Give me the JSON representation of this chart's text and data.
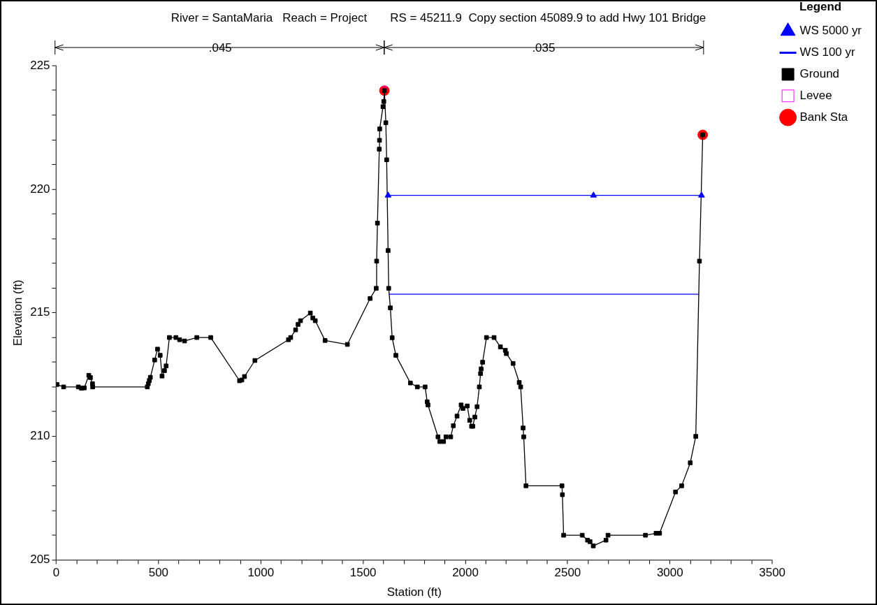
{
  "chart_data": {
    "type": "line",
    "title": "River = SantaMaria   Reach = Project       RS = 45211.9  Copy section 45089.9 to add Hwy 101 Bridge",
    "xlabel": "Station (ft)",
    "ylabel": "Elevation (ft)",
    "legend_title": "Legend",
    "legend": "right",
    "grid": false,
    "xlim": [
      0,
      3500
    ],
    "xticks": [
      0,
      {
        "value": 100,
        "label": null
      },
      {
        "value": 200,
        "label": null
      },
      {
        "value": 300,
        "label": null
      },
      {
        "value": 400,
        "label": null
      },
      500,
      {
        "value": 600,
        "label": null
      },
      {
        "value": 700,
        "label": null
      },
      {
        "value": 800,
        "label": null
      },
      {
        "value": 900,
        "label": null
      },
      1000,
      {
        "value": 1100,
        "label": null
      },
      {
        "value": 1200,
        "label": null
      },
      {
        "value": 1300,
        "label": null
      },
      {
        "value": 1400,
        "label": null
      },
      1500,
      {
        "value": 1600,
        "label": null
      },
      {
        "value": 1700,
        "label": null
      },
      {
        "value": 1800,
        "label": null
      },
      {
        "value": 1900,
        "label": null
      },
      2000,
      {
        "value": 2100,
        "label": null
      },
      {
        "value": 2200,
        "label": null
      },
      {
        "value": 2300,
        "label": null
      },
      {
        "value": 2400,
        "label": null
      },
      2500,
      {
        "value": 2600,
        "label": null
      },
      {
        "value": 2700,
        "label": null
      },
      {
        "value": 2800,
        "label": null
      },
      {
        "value": 2900,
        "label": null
      },
      3000,
      {
        "value": 3100,
        "label": null
      },
      {
        "value": 3200,
        "label": null
      },
      {
        "value": 3300,
        "label": null
      },
      {
        "value": 3400,
        "label": null
      },
      3500
    ],
    "ylim": [
      205,
      225
    ],
    "yticks": [
      205,
      {
        "value": 206,
        "label": null
      },
      {
        "value": 207,
        "label": null
      },
      {
        "value": 208,
        "label": null
      },
      {
        "value": 209,
        "label": null
      },
      210,
      {
        "value": 211,
        "label": null
      },
      {
        "value": 212,
        "label": null
      },
      {
        "value": 213,
        "label": null
      },
      {
        "value": 214,
        "label": null
      },
      215,
      {
        "value": 216,
        "label": null
      },
      {
        "value": 217,
        "label": null
      },
      {
        "value": 218,
        "label": null
      },
      {
        "value": 219,
        "label": null
      },
      220,
      {
        "value": 221,
        "label": null
      },
      {
        "value": 222,
        "label": null
      },
      {
        "value": 223,
        "label": null
      },
      {
        "value": 224,
        "label": null
      },
      225
    ],
    "annotations": [
      ".045",
      ".035"
    ],
    "series": [
      {
        "name": "WS 5000 yr",
        "type": "line",
        "color": "#0000ff",
        "marker": "triangle",
        "x": [
          1622,
          2626,
          3154
        ],
        "values": [
          219.75,
          219.75,
          219.75
        ]
      },
      {
        "name": "WS 100 yr",
        "type": "line",
        "color": "#0000ff",
        "marker": "none",
        "x": [
          1626,
          3142
        ],
        "values": [
          215.75,
          215.75
        ]
      },
      {
        "name": "Ground",
        "type": "line",
        "color": "#000000",
        "marker": "square",
        "x": [
          4,
          36,
          108,
          123,
          137,
          159,
          167,
          177,
          178,
          445,
          450,
          455,
          460,
          481,
          495,
          508,
          517,
          529,
          537,
          553,
          585,
          603,
          627,
          687,
          755,
          896,
          907,
          920,
          971,
          1135,
          1146,
          1170,
          1182,
          1194,
          1242,
          1254,
          1266,
          1314,
          1423,
          1534,
          1564,
          1566,
          1570,
          1579,
          1580,
          1581,
          1597,
          1601,
          1604,
          1611,
          1615,
          1622,
          1625,
          1633,
          1642,
          1660,
          1731,
          1765,
          1803,
          1813,
          1817,
          1866,
          1875,
          1893,
          1905,
          1928,
          1941,
          1959,
          1979,
          1988,
          2009,
          2021,
          2030,
          2036,
          2046,
          2057,
          2068,
          2074,
          2077,
          2084,
          2103,
          2140,
          2171,
          2195,
          2200,
          2233,
          2263,
          2270,
          2282,
          2285,
          2296,
          2472,
          2474,
          2480,
          2571,
          2597,
          2609,
          2625,
          2687,
          2697,
          2880,
          2932,
          2949,
          3027,
          3057,
          3099,
          3126,
          3144,
          3160
        ],
        "values": [
          212.1,
          212.0,
          212.0,
          211.95,
          211.96,
          212.47,
          212.38,
          212.13,
          212.0,
          212.0,
          212.13,
          212.26,
          212.39,
          213.09,
          213.53,
          213.28,
          212.44,
          212.66,
          212.85,
          214.0,
          214.0,
          213.91,
          213.86,
          214.0,
          214.0,
          212.25,
          212.28,
          212.42,
          213.07,
          213.91,
          214.0,
          214.31,
          214.53,
          214.68,
          214.99,
          214.79,
          214.68,
          213.88,
          213.72,
          215.58,
          215.99,
          217.09,
          218.63,
          221.62,
          221.98,
          222.44,
          223.34,
          223.55,
          223.99,
          222.69,
          221.19,
          217.52,
          215.99,
          215.2,
          213.99,
          213.28,
          212.16,
          212.0,
          212.0,
          211.4,
          211.27,
          209.98,
          209.79,
          209.79,
          209.98,
          209.98,
          210.43,
          210.82,
          211.27,
          211.13,
          211.23,
          210.65,
          210.41,
          210.41,
          210.78,
          211.2,
          212.0,
          212.54,
          212.73,
          213.0,
          214.0,
          214.0,
          213.62,
          213.48,
          213.35,
          212.95,
          212.18,
          212.0,
          210.34,
          209.98,
          208.0,
          208.0,
          207.64,
          206.0,
          206.0,
          205.8,
          205.74,
          205.57,
          205.8,
          206.0,
          206.0,
          206.08,
          206.08,
          207.75,
          208.0,
          208.93,
          210.0,
          217.09,
          222.2
        ]
      },
      {
        "name": "Levee",
        "type": "scatter",
        "color": "#ff00ff",
        "marker": "square",
        "x": [
          1604
        ],
        "values": [
          224.08
        ]
      },
      {
        "name": "Bank Sta",
        "type": "scatter",
        "color": "#ff0000",
        "marker": "circle",
        "x": [
          1604,
          3160
        ],
        "values": [
          223.99,
          222.2
        ]
      }
    ]
  }
}
